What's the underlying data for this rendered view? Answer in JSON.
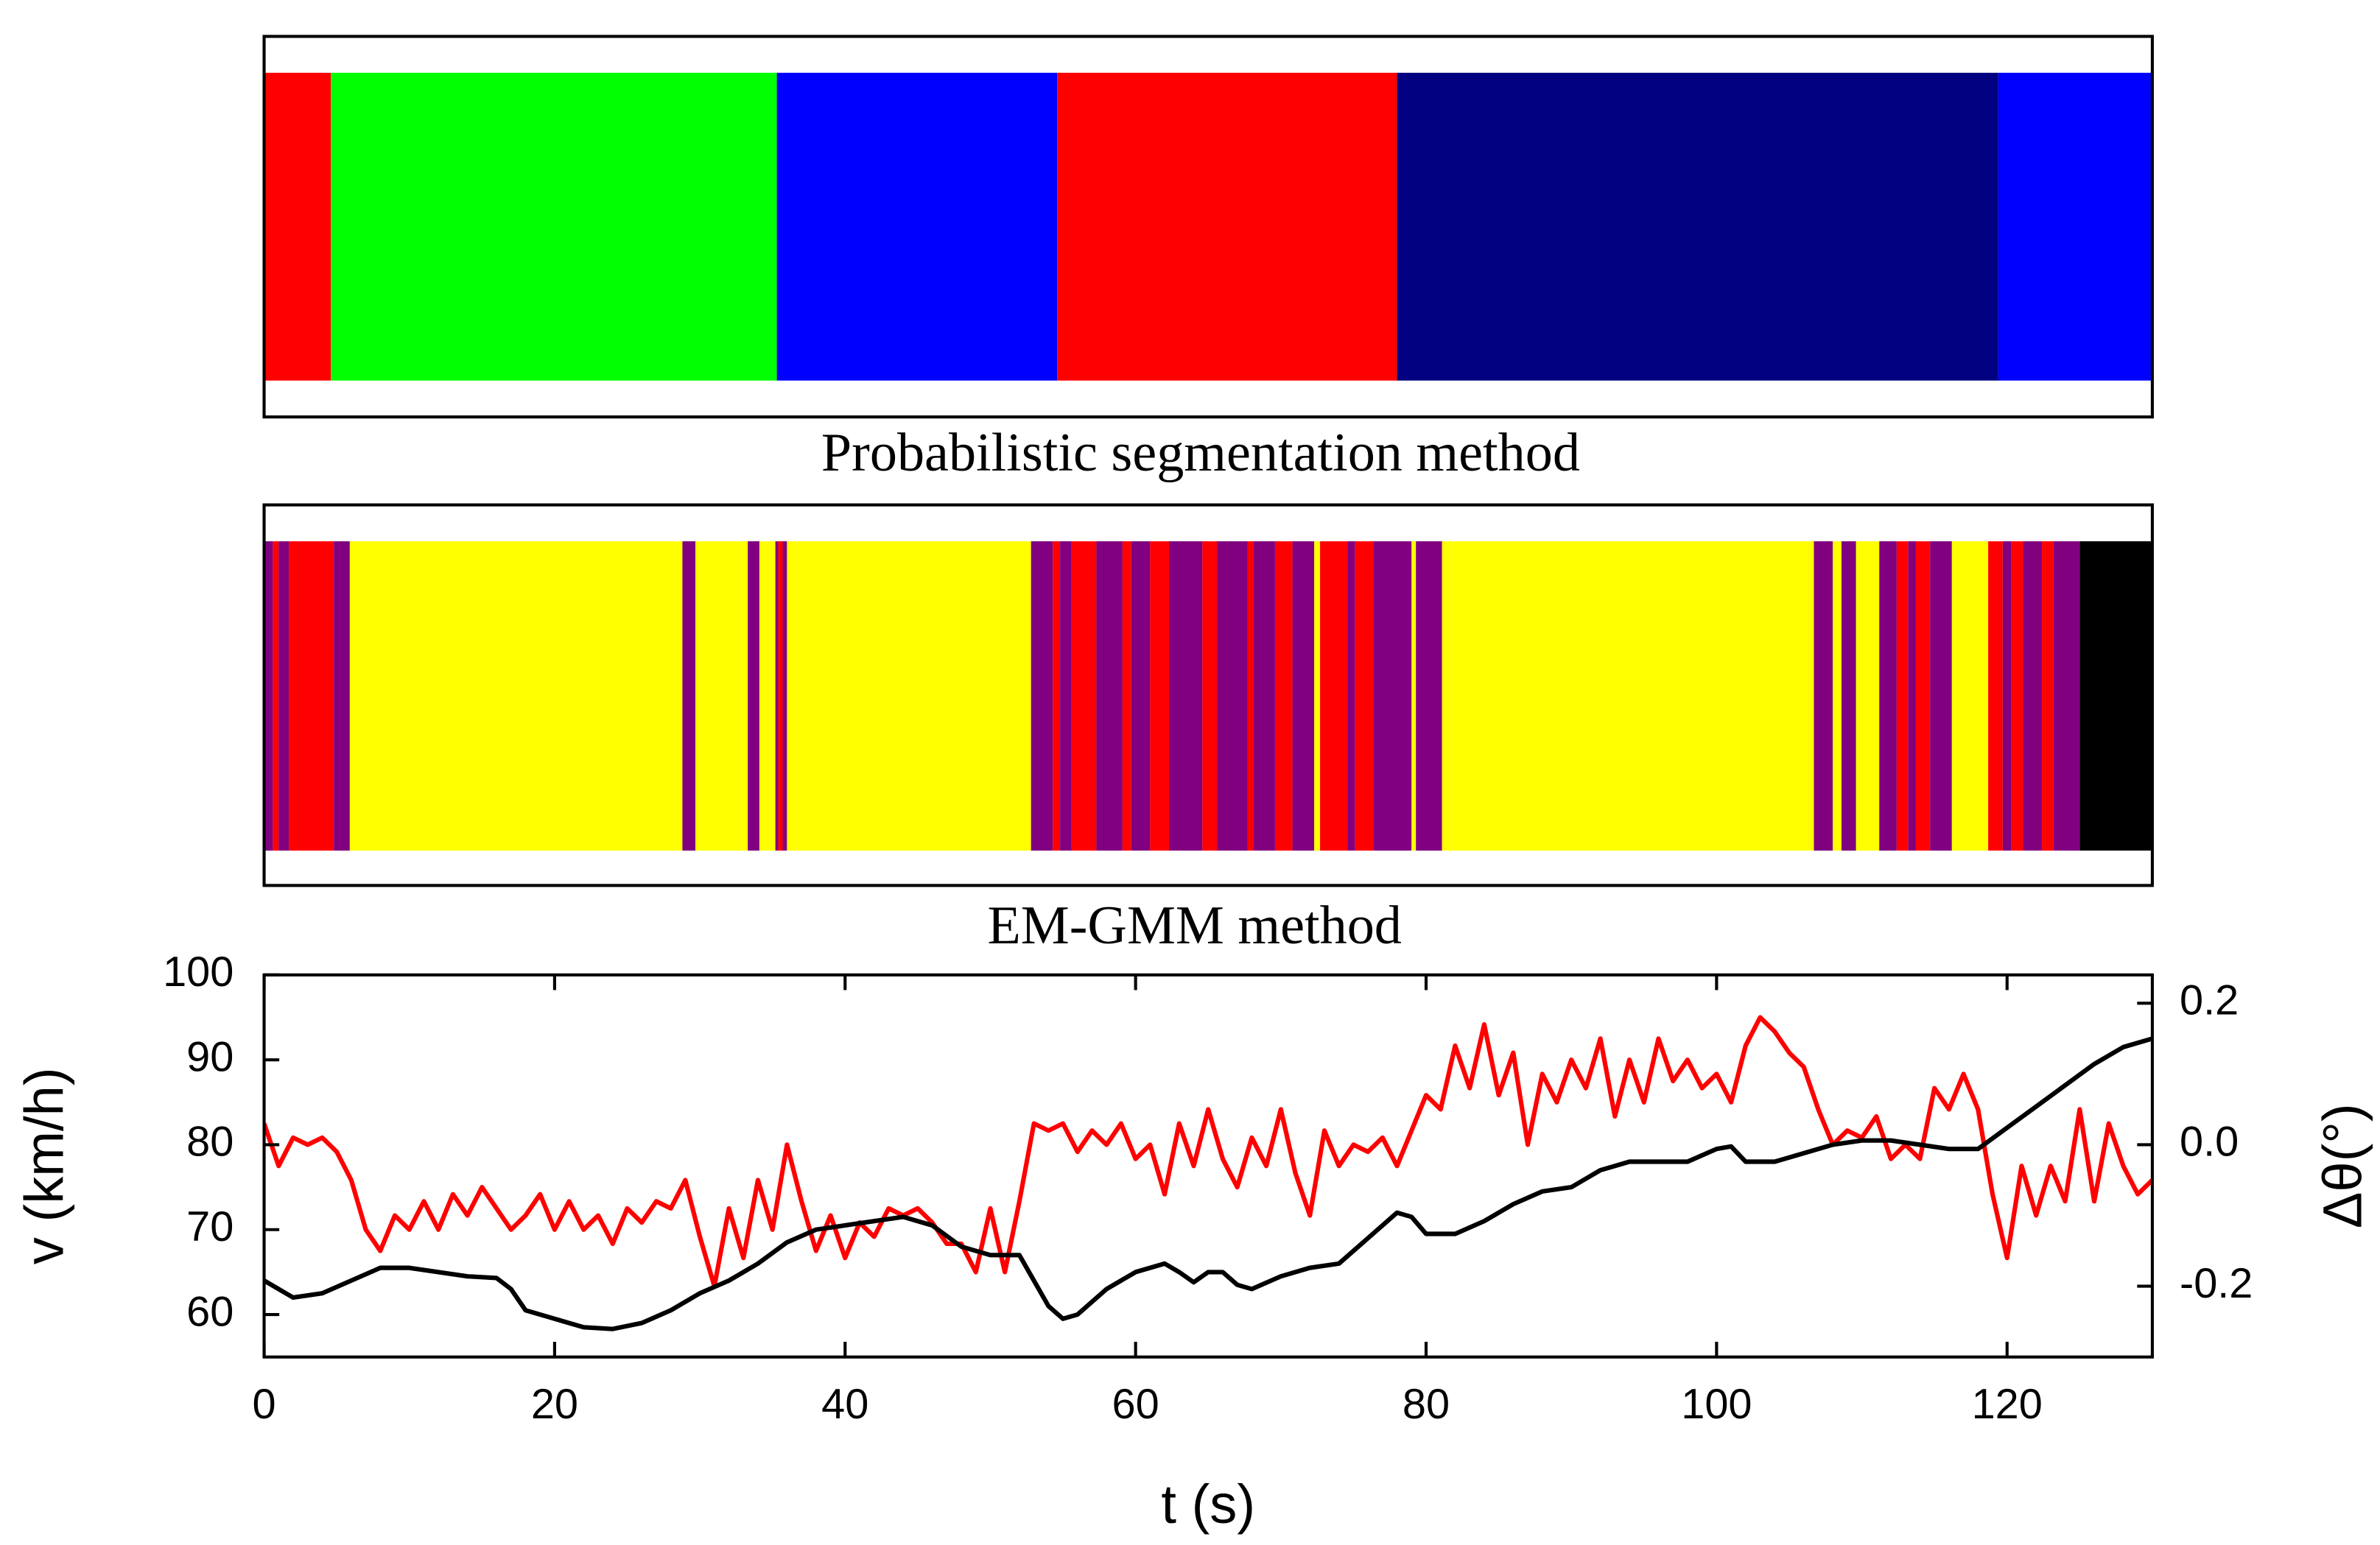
{
  "chart_data": [
    {
      "type": "segments",
      "label": "Probabilistic segmentation method",
      "xlim": [
        0,
        130
      ],
      "edges": [
        0,
        4.6,
        35.3,
        54.6,
        78.0,
        119.4,
        130
      ],
      "colors": [
        "#ff0000",
        "#00ff00",
        "#0000ff",
        "#ff0000",
        "#000080",
        "#0000ff"
      ]
    },
    {
      "type": "segments",
      "label": "EM-GMM method",
      "xlim": [
        0,
        130
      ],
      "edges": [
        0,
        0.6,
        1.0,
        1.7,
        4.8,
        5.9,
        28.8,
        29.7,
        33.3,
        34.1,
        35.2,
        35.4,
        35.7,
        36.0,
        52.8,
        54.3,
        54.8,
        55.6,
        57.3,
        59.1,
        59.7,
        61.0,
        62.3,
        64.6,
        65.6,
        67.7,
        68.1,
        69.6,
        70.8,
        72.3,
        72.7,
        74.6,
        75.1,
        76.4,
        79.0,
        79.3,
        81.1,
        106.7,
        108.0,
        108.6,
        109.6,
        111.2,
        112.4,
        113.2,
        113.7,
        114.7,
        116.2,
        118.7,
        119.7,
        120.3,
        121.1,
        122.4,
        123.2,
        125.0,
        130
      ],
      "colors": [
        "#800080",
        "#ff0000",
        "#800080",
        "#ff0000",
        "#800080",
        "#ffff00",
        "#800080",
        "#ffff00",
        "#800080",
        "#ffff00",
        "#800080",
        "#ff0000",
        "#800080",
        "#ffff00",
        "#800080",
        "#ff0000",
        "#800080",
        "#ff0000",
        "#800080",
        "#ff0000",
        "#800080",
        "#ff0000",
        "#800080",
        "#ff0000",
        "#800080",
        "#ff0000",
        "#800080",
        "#ff0000",
        "#800080",
        "#ffff00",
        "#ff0000",
        "#800080",
        "#ff0000",
        "#800080",
        "#ffff00",
        "#800080",
        "#ffff00",
        "#800080",
        "#ffff00",
        "#800080",
        "#ffff00",
        "#800080",
        "#ff0000",
        "#800080",
        "#ff0000",
        "#800080",
        "#ffff00",
        "#ff0000",
        "#800080",
        "#ff0000",
        "#800080",
        "#ff0000",
        "#800080",
        "#000000"
      ]
    },
    {
      "type": "line",
      "x_label": "t (s)",
      "y_label": "v (km/h)",
      "y2_label": "Δθ(°)",
      "xlim": [
        0,
        130
      ],
      "xticks": [
        0,
        20,
        40,
        60,
        80,
        100,
        120
      ],
      "ylim": [
        55,
        100
      ],
      "yticks": [
        60,
        70,
        80,
        90,
        100
      ],
      "y2lim": [
        -0.3,
        0.24
      ],
      "y2ticks": [
        -0.2,
        {
          "value": 0,
          "label": "0.0"
        },
        0.2
      ],
      "series": [
        {
          "color": "#ff0000",
          "axis": "y2",
          "x": [
            0,
            1,
            2,
            3,
            4,
            5,
            6,
            7,
            8,
            9,
            10,
            11,
            12,
            13,
            14,
            15,
            16,
            17,
            18,
            19,
            20,
            21,
            22,
            23,
            24,
            25,
            26,
            27,
            28,
            29,
            30,
            31,
            32,
            33,
            34,
            35,
            36,
            37,
            38,
            39,
            40,
            41,
            42,
            43,
            44,
            45,
            46,
            47,
            48,
            49,
            50,
            51,
            52,
            53,
            54,
            55,
            56,
            57,
            58,
            59,
            60,
            61,
            62,
            63,
            64,
            65,
            66,
            67,
            68,
            69,
            70,
            71,
            72,
            73,
            74,
            75,
            76,
            77,
            78,
            79,
            80,
            81,
            82,
            83,
            84,
            85,
            86,
            87,
            88,
            89,
            90,
            91,
            92,
            93,
            94,
            95,
            96,
            97,
            98,
            99,
            100,
            101,
            102,
            103,
            104,
            105,
            106,
            107,
            108,
            109,
            110,
            111,
            112,
            113,
            114,
            115,
            116,
            117,
            118,
            119,
            120,
            121,
            122,
            123,
            124,
            125,
            126,
            127,
            128,
            129,
            130
          ],
          "values": [
            0.03,
            -0.03,
            0.01,
            0.0,
            0.01,
            -0.01,
            -0.05,
            -0.12,
            -0.15,
            -0.1,
            -0.12,
            -0.08,
            -0.12,
            -0.07,
            -0.1,
            -0.06,
            -0.09,
            -0.12,
            -0.1,
            -0.07,
            -0.12,
            -0.08,
            -0.12,
            -0.1,
            -0.14,
            -0.09,
            -0.11,
            -0.08,
            -0.09,
            -0.05,
            -0.13,
            -0.2,
            -0.09,
            -0.16,
            -0.05,
            -0.12,
            0.0,
            -0.08,
            -0.15,
            -0.1,
            -0.16,
            -0.11,
            -0.13,
            -0.09,
            -0.1,
            -0.09,
            -0.11,
            -0.14,
            -0.14,
            -0.18,
            -0.09,
            -0.18,
            -0.08,
            0.03,
            0.02,
            0.03,
            -0.01,
            0.02,
            0.0,
            0.03,
            -0.02,
            0.0,
            -0.07,
            0.03,
            -0.03,
            0.05,
            -0.02,
            -0.06,
            0.01,
            -0.03,
            0.05,
            -0.04,
            -0.1,
            0.02,
            -0.03,
            0.0,
            -0.01,
            0.01,
            -0.03,
            0.02,
            0.07,
            0.05,
            0.14,
            0.08,
            0.17,
            0.07,
            0.13,
            0.0,
            0.1,
            0.06,
            0.12,
            0.08,
            0.15,
            0.04,
            0.12,
            0.06,
            0.15,
            0.09,
            0.12,
            0.08,
            0.1,
            0.06,
            0.14,
            0.18,
            0.16,
            0.13,
            0.11,
            0.05,
            0.0,
            0.02,
            0.01,
            0.04,
            -0.02,
            0.0,
            -0.02,
            0.08,
            0.05,
            0.1,
            0.05,
            -0.07,
            -0.16,
            -0.03,
            -0.1,
            -0.03,
            -0.08,
            0.05,
            -0.08,
            0.03,
            -0.03,
            -0.07,
            -0.05
          ]
        },
        {
          "color": "#000000",
          "x": [
            0,
            1,
            2,
            4,
            6,
            8,
            10,
            12,
            14,
            16,
            17,
            18,
            20,
            22,
            24,
            26,
            28,
            30,
            32,
            34,
            36,
            38,
            40,
            42,
            44,
            46,
            48,
            50,
            52,
            54,
            55,
            56,
            58,
            60,
            62,
            63,
            64,
            65,
            66,
            67,
            68,
            70,
            72,
            74,
            76,
            78,
            79,
            80,
            82,
            84,
            86,
            88,
            90,
            92,
            94,
            96,
            98,
            100,
            101,
            102,
            104,
            106,
            108,
            110,
            112,
            114,
            116,
            118,
            120,
            122,
            124,
            126,
            128,
            130
          ],
          "values": [
            64,
            63,
            62,
            62.5,
            64,
            65.5,
            65.5,
            65,
            64.5,
            64.3,
            63,
            60.5,
            59.5,
            58.5,
            58.3,
            59,
            60.5,
            62.5,
            64,
            66,
            68.5,
            70,
            70.5,
            71,
            71.5,
            70.5,
            68,
            67,
            67,
            61,
            59.5,
            60,
            63,
            65,
            66,
            65,
            63.8,
            65,
            65,
            63.5,
            63,
            64.5,
            65.5,
            66,
            69,
            72,
            71.5,
            69.5,
            69.5,
            71,
            73,
            74.5,
            75,
            77,
            78,
            78,
            78,
            79.5,
            79.8,
            78,
            78,
            79,
            80,
            80.5,
            80.5,
            80,
            79.5,
            79.5,
            82,
            84.5,
            87,
            89.5,
            91.5,
            92.5
          ]
        }
      ]
    }
  ]
}
